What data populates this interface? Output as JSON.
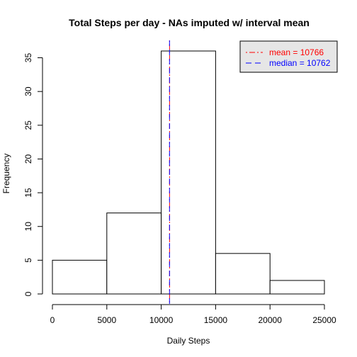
{
  "chart_data": {
    "type": "bar",
    "subtype": "histogram",
    "title": "Total Steps per day - NAs imputed w/ interval mean",
    "xlabel": "Daily Steps",
    "ylabel": "Frequency",
    "bins": [
      {
        "start": 0,
        "end": 5000,
        "count": 5
      },
      {
        "start": 5000,
        "end": 10000,
        "count": 12
      },
      {
        "start": 10000,
        "end": 15000,
        "count": 36
      },
      {
        "start": 15000,
        "end": 20000,
        "count": 6
      },
      {
        "start": 20000,
        "end": 25000,
        "count": 2
      }
    ],
    "xlim": [
      0,
      25000
    ],
    "ylim": [
      0,
      36
    ],
    "x_ticks": [
      0,
      5000,
      10000,
      15000,
      20000,
      25000
    ],
    "y_ticks": [
      0,
      5,
      10,
      15,
      20,
      25,
      30,
      35
    ],
    "bar_fill": "#ffffff",
    "bar_stroke": "#000000",
    "vlines": [
      {
        "name": "mean",
        "value": 10766,
        "color": "#ff0000",
        "style": "dotdash"
      },
      {
        "name": "median",
        "value": 10762,
        "color": "#0000ff",
        "style": "dashed"
      }
    ],
    "legend": {
      "position": "top-right",
      "background": "#e6e6e6",
      "entries": [
        {
          "label": "mean = 10766",
          "color": "#ff0000",
          "style": "dotdash"
        },
        {
          "label": "median = 10762",
          "color": "#0000ff",
          "style": "dashed"
        }
      ]
    },
    "grid": false
  }
}
